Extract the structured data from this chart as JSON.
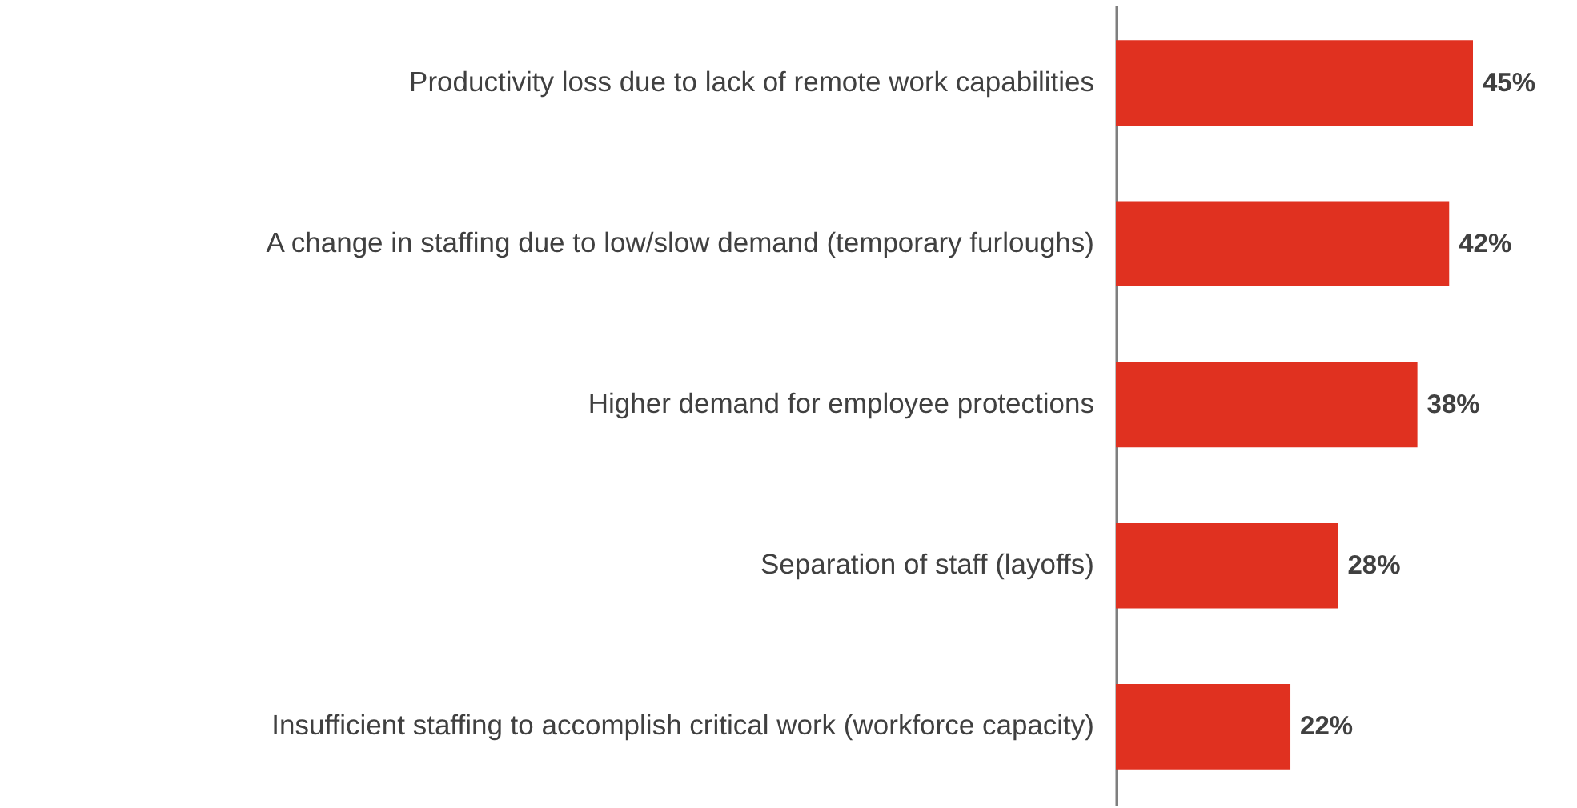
{
  "chart_data": {
    "type": "bar",
    "orientation": "horizontal",
    "categories": [
      "Productivity loss due to lack of remote work capabilities",
      "A change in staffing due to low/slow demand (temporary furloughs)",
      "Higher demand for employee protections",
      "Separation of staff (layoffs)",
      "Insufficient staffing to accomplish critical work (workforce capacity)"
    ],
    "values": [
      45,
      42,
      38,
      28,
      22
    ],
    "value_labels": [
      "45%",
      "42%",
      "38%",
      "28%",
      "22%"
    ],
    "color": "#e03120"
  }
}
